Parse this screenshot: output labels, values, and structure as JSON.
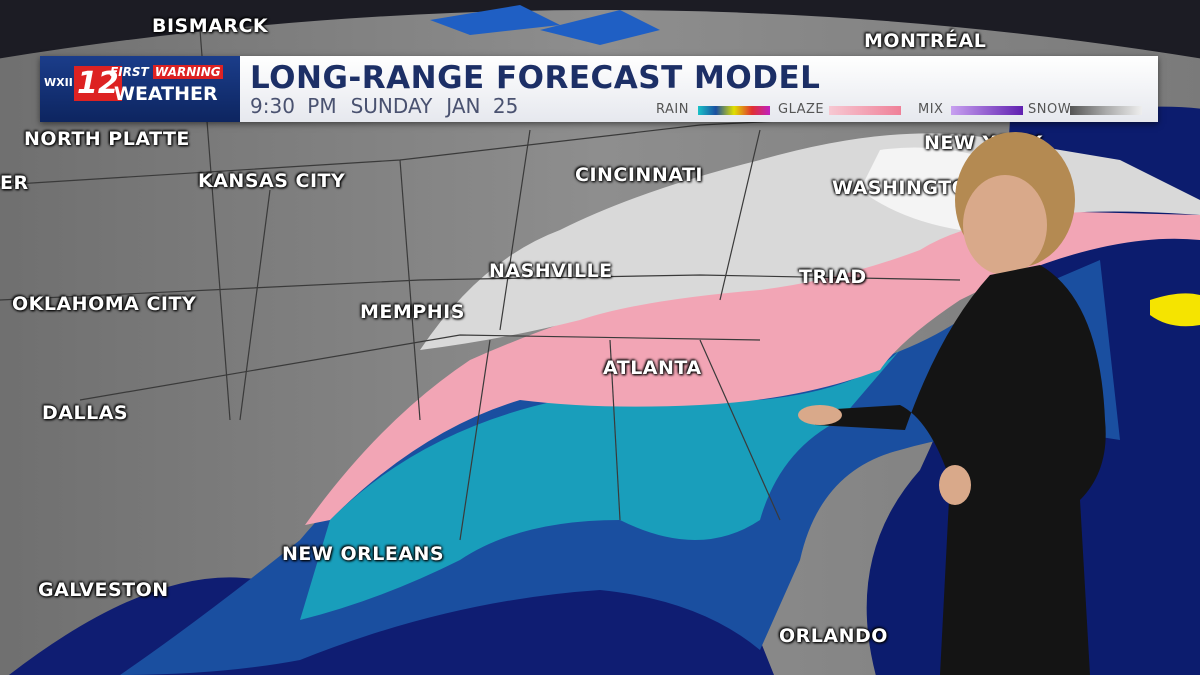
{
  "header": {
    "logo": {
      "station": "WXII",
      "channel": "12",
      "brand_first": "FIRST",
      "brand_warning": "WARNING",
      "brand_bottom": "WEATHER"
    },
    "title": "LONG-RANGE FORECAST MODEL",
    "time": "9:30 PM",
    "day": "SUNDAY",
    "date": "JAN 25"
  },
  "legend": [
    {
      "label": "RAIN"
    },
    {
      "label": "GLAZE"
    },
    {
      "label": "MIX"
    },
    {
      "label": "SNOW"
    }
  ],
  "cities": [
    "BISMARCK",
    "MONTRÉAL",
    "NORTH PLATTE",
    "ER",
    "KANSAS CITY",
    "CINCINNATI",
    "NEW YORK",
    "WASHINGTON",
    "NASHVILLE",
    "TRIAD",
    "OKLAHOMA CITY",
    "MEMPHIS",
    "ATLANTA",
    "DALLAS",
    "NEW ORLEANS",
    "GALVESTON",
    "ORLANDO"
  ]
}
